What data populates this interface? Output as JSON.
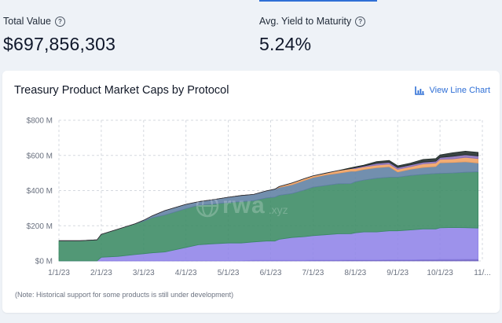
{
  "metrics": {
    "total_value_label": "Total Value",
    "total_value": "$697,856,303",
    "ytm_label": "Avg. Yield to Maturity",
    "ytm_value": "5.24%"
  },
  "card": {
    "title": "Treasury Product Market Caps by Protocol",
    "view_line_label": "View Line Chart",
    "note": "(Note: Historical support for some products is still under development)",
    "watermark": "rwa",
    "watermark_suffix": ".xyz"
  },
  "colors": {
    "link": "#2f6fd6",
    "series": [
      "#6b5fbf",
      "#8f83e8",
      "#3a8a63",
      "#5f7fa3",
      "#f0a060",
      "#8a6fb8",
      "#1f2a28"
    ]
  },
  "chart_data": {
    "type": "area",
    "stacked": true,
    "x_ticks": [
      "1/1/23",
      "2/1/23",
      "3/1/23",
      "4/1/23",
      "5/1/23",
      "6/1/23",
      "7/1/23",
      "8/1/23",
      "9/1/23",
      "10/1/23",
      "11/..."
    ],
    "y_ticks": [
      "$0 M",
      "$200 M",
      "$400 M",
      "$600 M",
      "$800 M"
    ],
    "ylim": [
      0,
      800
    ],
    "grid": true,
    "x_months": [
      0,
      0.5,
      0.9,
      1.0,
      1.4,
      1.8,
      2.0,
      2.2,
      2.5,
      3.0,
      3.3,
      3.6,
      4.0,
      4.3,
      4.6,
      4.9,
      5.1,
      5.2,
      5.5,
      5.8,
      6.0,
      6.3,
      6.6,
      6.9,
      7.0,
      7.2,
      7.5,
      7.8,
      8.0,
      8.3,
      8.6,
      8.9,
      9.0,
      9.3,
      9.6,
      9.9
    ],
    "series": [
      {
        "values": [
          0,
          0,
          0,
          1,
          1,
          1,
          1,
          1,
          1,
          2,
          2,
          2,
          2,
          2,
          3,
          3,
          3,
          3,
          3,
          3,
          4,
          4,
          4,
          5,
          5,
          5,
          5,
          6,
          6,
          6,
          7,
          7,
          8,
          8,
          9,
          9
        ]
      },
      {
        "values": [
          0,
          0,
          0,
          20,
          25,
          35,
          40,
          45,
          50,
          75,
          90,
          95,
          100,
          100,
          105,
          110,
          110,
          120,
          130,
          135,
          140,
          145,
          150,
          150,
          155,
          160,
          160,
          165,
          165,
          170,
          175,
          175,
          180,
          182,
          180,
          178
        ]
      },
      {
        "values": [
          115,
          115,
          120,
          130,
          155,
          175,
          185,
          200,
          210,
          220,
          225,
          225,
          230,
          235,
          235,
          245,
          250,
          250,
          250,
          265,
          275,
          280,
          285,
          285,
          290,
          295,
          305,
          305,
          305,
          310,
          310,
          315,
          310,
          310,
          315,
          320
        ]
      },
      {
        "values": [
          0,
          0,
          0,
          0,
          0,
          0,
          5,
          10,
          25,
          25,
          20,
          25,
          30,
          35,
          35,
          40,
          45,
          45,
          50,
          55,
          55,
          60,
          60,
          70,
          60,
          60,
          60,
          60,
          30,
          35,
          40,
          40,
          60,
          60,
          60,
          50
        ]
      },
      {
        "values": [
          0,
          0,
          0,
          0,
          0,
          0,
          0,
          0,
          0,
          0,
          0,
          0,
          0,
          0,
          0,
          0,
          0,
          5,
          10,
          10,
          10,
          10,
          15,
          15,
          15,
          15,
          15,
          15,
          15,
          15,
          20,
          20,
          20,
          20,
          25,
          25
        ]
      },
      {
        "values": [
          0,
          0,
          0,
          0,
          0,
          0,
          0,
          0,
          0,
          0,
          0,
          0,
          0,
          0,
          0,
          0,
          0,
          0,
          0,
          0,
          0,
          0,
          0,
          0,
          5,
          5,
          10,
          10,
          10,
          10,
          10,
          10,
          10,
          15,
          15,
          15
        ]
      },
      {
        "values": [
          0,
          0,
          0,
          0,
          0,
          0,
          0,
          0,
          0,
          0,
          0,
          0,
          0,
          0,
          0,
          0,
          0,
          0,
          0,
          0,
          0,
          0,
          0,
          5,
          5,
          5,
          10,
          10,
          10,
          10,
          15,
          15,
          15,
          20,
          20,
          20
        ]
      }
    ]
  }
}
